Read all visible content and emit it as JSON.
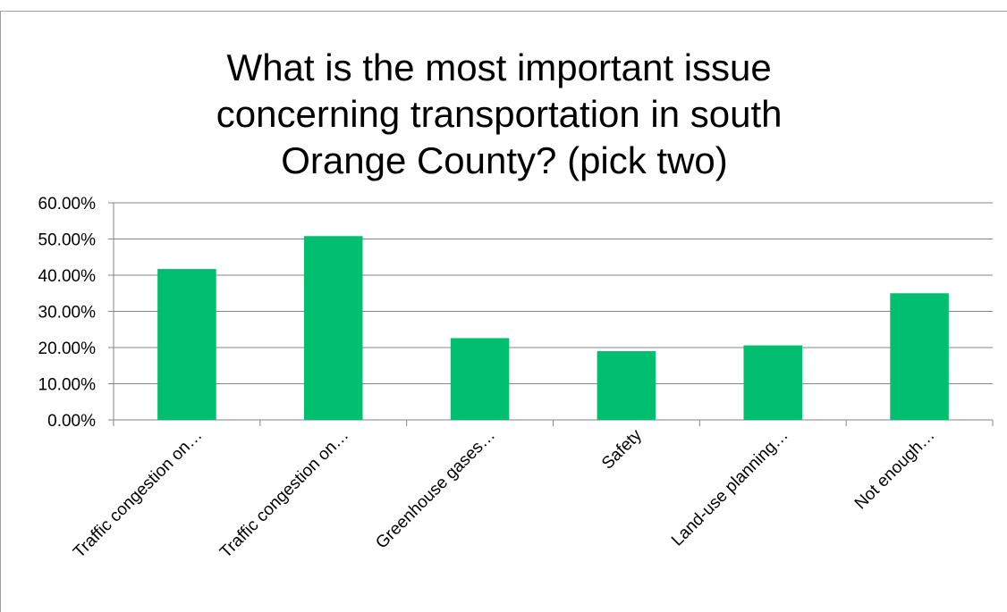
{
  "chart_data": {
    "type": "bar",
    "title_lines": [
      "What is the most important issue",
      "concerning transportation in south",
      "Orange County? (pick two)"
    ],
    "categories": [
      "Traffic congestion on…",
      "Traffic congestion on…",
      "Greenhouse gases…",
      "Safety",
      "Land-use planning…",
      "Not enough…"
    ],
    "values": [
      41.7,
      50.8,
      22.6,
      19.0,
      20.6,
      35.0
    ],
    "ylim": [
      0,
      60
    ],
    "yticks": [
      "0.00%",
      "10.00%",
      "20.00%",
      "30.00%",
      "40.00%",
      "50.00%",
      "60.00%"
    ],
    "bar_color": "#00BF6F",
    "grid": true
  },
  "colors": {
    "gridline": "#868686",
    "axis": "#868686",
    "text": "#000000",
    "border": "#a0a0a0"
  }
}
